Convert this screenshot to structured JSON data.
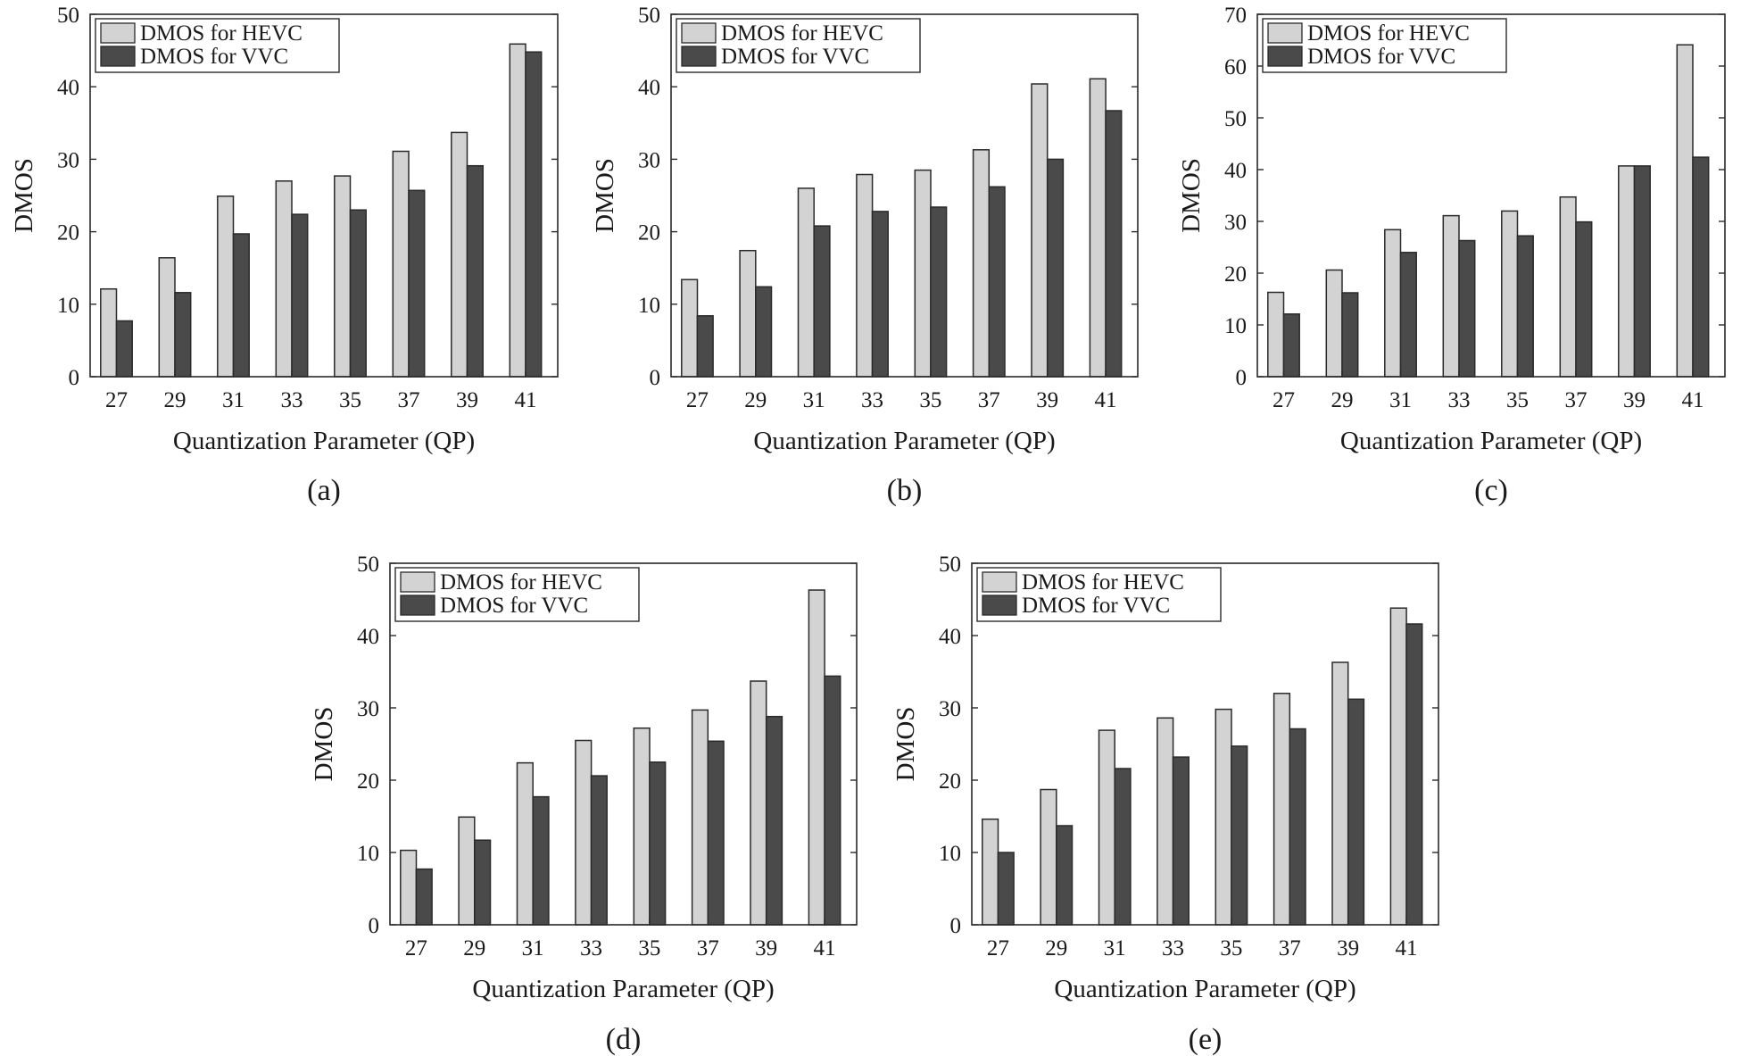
{
  "colors": {
    "hevc": "#d3d3d3",
    "vvc": "#4a4a4a",
    "edge": "#2a2a2a"
  },
  "chart_data": [
    {
      "type": "bar",
      "caption": "(a)",
      "categories": [
        "27",
        "29",
        "31",
        "33",
        "35",
        "37",
        "39",
        "41"
      ],
      "xlabel": "Quantization Parameter (QP)",
      "ylabel": "DMOS",
      "ylim": [
        0,
        50
      ],
      "yticks": [
        "0",
        "10",
        "20",
        "30",
        "40",
        "50"
      ],
      "legend_position": "top-left",
      "series": [
        {
          "name": "DMOS for HEVC",
          "values": [
            12.1,
            16.4,
            24.9,
            27.0,
            27.7,
            31.1,
            33.7,
            45.9
          ]
        },
        {
          "name": "DMOS for VVC",
          "values": [
            7.7,
            11.6,
            19.7,
            22.4,
            23.0,
            25.7,
            29.1,
            44.8
          ]
        }
      ]
    },
    {
      "type": "bar",
      "caption": "(b)",
      "categories": [
        "27",
        "29",
        "31",
        "33",
        "35",
        "37",
        "39",
        "41"
      ],
      "xlabel": "Quantization Parameter (QP)",
      "ylabel": "DMOS",
      "ylim": [
        0,
        50
      ],
      "yticks": [
        "0",
        "10",
        "20",
        "30",
        "40",
        "50"
      ],
      "legend_position": "top-left",
      "series": [
        {
          "name": "DMOS for HEVC",
          "values": [
            13.4,
            17.4,
            26.0,
            27.9,
            28.5,
            31.3,
            40.4,
            41.1
          ]
        },
        {
          "name": "DMOS for VVC",
          "values": [
            8.4,
            12.4,
            20.8,
            22.8,
            23.4,
            26.2,
            30.0,
            36.7
          ]
        }
      ]
    },
    {
      "type": "bar",
      "caption": "(c)",
      "categories": [
        "27",
        "29",
        "31",
        "33",
        "35",
        "37",
        "39",
        "41"
      ],
      "xlabel": "Quantization Parameter (QP)",
      "ylabel": "DMOS",
      "ylim": [
        0,
        70
      ],
      "yticks": [
        "0",
        "10",
        "20",
        "30",
        "40",
        "50",
        "60",
        "70"
      ],
      "legend_position": "top-left",
      "series": [
        {
          "name": "DMOS for HEVC",
          "values": [
            16.3,
            20.6,
            28.4,
            31.1,
            32.0,
            34.7,
            40.7,
            64.1
          ]
        },
        {
          "name": "DMOS for VVC",
          "values": [
            12.1,
            16.2,
            24.0,
            26.3,
            27.2,
            29.9,
            40.7,
            42.4
          ]
        }
      ]
    },
    {
      "type": "bar",
      "caption": "(d)",
      "categories": [
        "27",
        "29",
        "31",
        "33",
        "35",
        "37",
        "39",
        "41"
      ],
      "xlabel": "Quantization Parameter (QP)",
      "ylabel": "DMOS",
      "ylim": [
        0,
        50
      ],
      "yticks": [
        "0",
        "10",
        "20",
        "30",
        "40",
        "50"
      ],
      "legend_position": "top-left",
      "series": [
        {
          "name": "DMOS for HEVC",
          "values": [
            10.3,
            14.9,
            22.4,
            25.5,
            27.2,
            29.7,
            33.7,
            46.3
          ]
        },
        {
          "name": "DMOS for VVC",
          "values": [
            7.7,
            11.7,
            17.7,
            20.6,
            22.5,
            25.4,
            28.8,
            34.4
          ]
        }
      ]
    },
    {
      "type": "bar",
      "caption": "(e)",
      "categories": [
        "27",
        "29",
        "31",
        "33",
        "35",
        "37",
        "39",
        "41"
      ],
      "xlabel": "Quantization Parameter (QP)",
      "ylabel": "DMOS",
      "ylim": [
        0,
        50
      ],
      "yticks": [
        "0",
        "10",
        "20",
        "30",
        "40",
        "50"
      ],
      "legend_position": "top-left",
      "series": [
        {
          "name": "DMOS for HEVC",
          "values": [
            14.6,
            18.7,
            26.9,
            28.6,
            29.8,
            32.0,
            36.3,
            43.8
          ]
        },
        {
          "name": "DMOS for VVC",
          "values": [
            10.0,
            13.7,
            21.6,
            23.2,
            24.7,
            27.1,
            31.2,
            41.6
          ]
        }
      ]
    }
  ]
}
